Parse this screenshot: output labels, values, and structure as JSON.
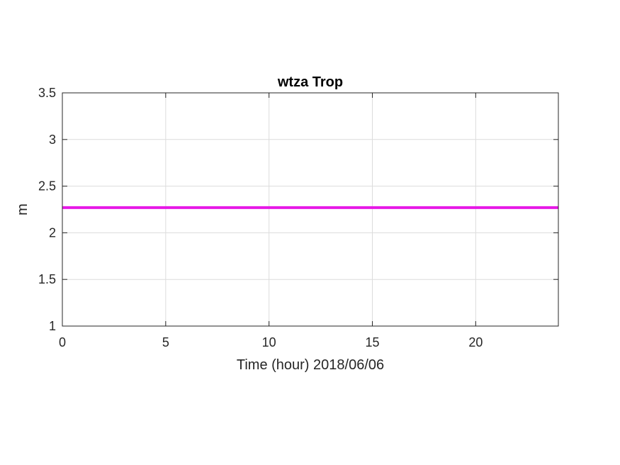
{
  "chart_data": {
    "type": "line",
    "title": "wtza Trop",
    "xlabel": "Time (hour)  2018/06/06",
    "ylabel": "m",
    "xlim": [
      0,
      24
    ],
    "ylim": [
      1,
      3.5
    ],
    "x_ticks": [
      0,
      5,
      10,
      15,
      20
    ],
    "x_tick_labels": [
      "0",
      "5",
      "10",
      "15",
      "20"
    ],
    "y_ticks": [
      1,
      1.5,
      2,
      2.5,
      3,
      3.5
    ],
    "y_tick_labels": [
      "1",
      "1.5",
      "2",
      "2.5",
      "3",
      "3.5"
    ],
    "grid": true,
    "series": [
      {
        "color": "#e619e6",
        "x": [
          0,
          24
        ],
        "y": [
          2.27,
          2.27
        ]
      }
    ]
  }
}
